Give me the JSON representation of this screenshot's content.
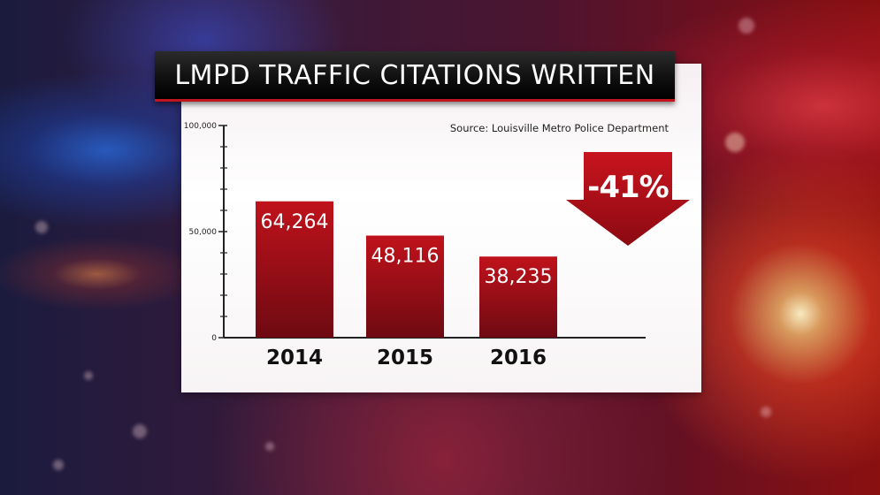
{
  "header": {
    "title": "LMPD TRAFFIC CITATIONS WRITTEN"
  },
  "source_note": "Source: Louisville Metro Police Department",
  "change_badge": {
    "label": "-41%",
    "color": "#b0121c"
  },
  "colors": {
    "bar_top": "#c0121b",
    "bar_bottom": "#6e0a12",
    "axis": "#222222"
  },
  "chart_data": {
    "type": "bar",
    "categories": [
      "2014",
      "2015",
      "2016"
    ],
    "values": [
      64264,
      48116,
      38235
    ],
    "data_labels": [
      "64,264",
      "48,116",
      "38,235"
    ],
    "title": "LMPD TRAFFIC CITATIONS WRITTEN",
    "xlabel": "",
    "ylabel": "",
    "ylim": [
      0,
      100000
    ],
    "yticks": [
      0,
      50000,
      100000
    ],
    "ytick_labels": [
      "0",
      "50,000",
      "100,000"
    ],
    "grid": false,
    "legend": "none"
  }
}
